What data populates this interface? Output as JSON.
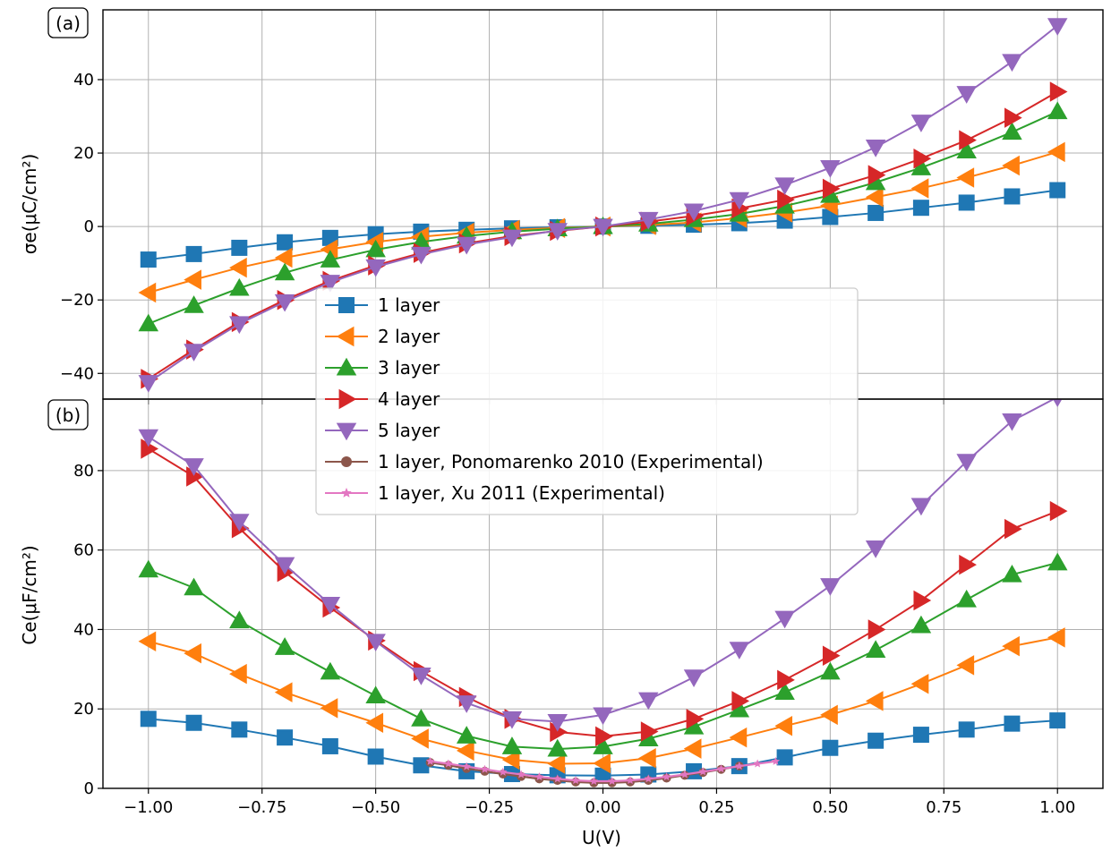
{
  "figure": {
    "panel_a_label": "(a)",
    "panel_b_label": "(b)",
    "ylabel_a": "σe(μC/cm²)",
    "ylabel_b": "Ce(μF/cm²)",
    "xlabel": "U(V)",
    "legend": [
      "1 layer",
      "2 layer",
      "3 layer",
      "4 layer",
      "5 layer",
      "1 layer, Ponomarenko 2010 (Experimental)",
      "1 layer, Xu 2011 (Experimental)"
    ],
    "colors": {
      "1 layer": "#1f77b4",
      "2 layer": "#ff7f0e",
      "3 layer": "#2ca02c",
      "4 layer": "#d62728",
      "5 layer": "#9467bd",
      "Ponomarenko": "#8c564b",
      "Xu": "#e377c2"
    },
    "markers": [
      "square",
      "triangle-left",
      "triangle-up",
      "triangle-right",
      "triangle-down",
      "circle",
      "star"
    ]
  },
  "chart_data": [
    {
      "type": "line",
      "panel": "(a)",
      "xlabel": "U(V)",
      "ylabel": "σe(μC/cm²)",
      "xlim": [
        -1.1,
        1.1
      ],
      "ylim": [
        -47,
        59
      ],
      "xticks": [
        "−1.00",
        "−0.75",
        "−0.50",
        "−0.25",
        "0.00",
        "0.25",
        "0.50",
        "0.75",
        "1.00"
      ],
      "yticks": [
        "−40",
        "−20",
        "0",
        "20",
        "40"
      ],
      "grid": true,
      "x": [
        -1.0,
        -0.9,
        -0.8,
        -0.7,
        -0.6,
        -0.5,
        -0.4,
        -0.3,
        -0.2,
        -0.1,
        0.0,
        0.1,
        0.2,
        0.3,
        0.4,
        0.5,
        0.6,
        0.7,
        0.8,
        0.9,
        1.0
      ],
      "series": [
        {
          "name": "1 layer",
          "values": [
            -9,
            -7.5,
            -5.8,
            -4.3,
            -3.1,
            -2.1,
            -1.4,
            -0.9,
            -0.5,
            -0.2,
            0,
            0.2,
            0.5,
            0.9,
            1.6,
            2.6,
            3.7,
            5.1,
            6.5,
            8.2,
            9.9
          ]
        },
        {
          "name": "2 layer",
          "values": [
            -18,
            -14.5,
            -11.2,
            -8.5,
            -6.2,
            -4.2,
            -2.8,
            -1.7,
            -0.9,
            -0.4,
            0,
            0.4,
            1.1,
            2.3,
            3.8,
            5.7,
            8,
            10.4,
            13.3,
            16.6,
            20.3
          ]
        },
        {
          "name": "3 layer",
          "values": [
            -26.5,
            -21.5,
            -16.8,
            -12.6,
            -9.1,
            -6.3,
            -4.2,
            -2.6,
            -1.4,
            -0.6,
            0,
            0.7,
            1.9,
            3.4,
            5.6,
            8.5,
            12,
            16,
            20.6,
            25.7,
            31.3
          ]
        },
        {
          "name": "4 layer",
          "values": [
            -41.5,
            -33.5,
            -26,
            -20,
            -14.8,
            -10.6,
            -7.2,
            -4.6,
            -2.6,
            -1.2,
            0,
            1.3,
            2.9,
            4.9,
            7.3,
            10.3,
            14,
            18.5,
            23.5,
            29.6,
            36.7
          ]
        },
        {
          "name": "5 layer",
          "values": [
            -42.5,
            -34,
            -26.5,
            -20.5,
            -15.2,
            -11,
            -7.6,
            -4.9,
            -2.9,
            -1.1,
            0,
            1.9,
            4.2,
            7.3,
            11.3,
            16,
            21.6,
            28.4,
            36.2,
            44.9,
            54.7
          ]
        }
      ]
    },
    {
      "type": "line",
      "panel": "(b)",
      "xlabel": "U(V)",
      "ylabel": "Ce(μF/cm²)",
      "xlim": [
        -1.1,
        1.1
      ],
      "ylim": [
        0,
        98
      ],
      "xticks": [
        "−1.00",
        "−0.75",
        "−0.50",
        "−0.25",
        "0.00",
        "0.25",
        "0.50",
        "0.75",
        "1.00"
      ],
      "yticks": [
        "0",
        "20",
        "40",
        "60",
        "80"
      ],
      "grid": true,
      "x": [
        -1.0,
        -0.9,
        -0.8,
        -0.7,
        -0.6,
        -0.5,
        -0.4,
        -0.3,
        -0.2,
        -0.1,
        0.0,
        0.1,
        0.2,
        0.3,
        0.4,
        0.5,
        0.6,
        0.7,
        0.8,
        0.9,
        1.0
      ],
      "series": [
        {
          "name": "1 layer",
          "values": [
            17.5,
            16.5,
            14.8,
            12.8,
            10.6,
            8,
            5.8,
            4.3,
            3.6,
            3.3,
            3.2,
            3.5,
            4.3,
            5.6,
            7.8,
            10.2,
            12,
            13.5,
            14.8,
            16.3,
            17.1
          ]
        },
        {
          "name": "2 layer",
          "values": [
            37,
            34,
            28.8,
            24.2,
            20.2,
            16.5,
            12.5,
            9.5,
            7.2,
            6.2,
            6.3,
            7.6,
            10,
            12.8,
            15.7,
            18.5,
            22,
            26.3,
            31,
            35.8,
            38
          ]
        },
        {
          "name": "3 layer",
          "values": [
            55,
            50.5,
            42.2,
            35.5,
            29.3,
            23.3,
            17.5,
            13.2,
            10.5,
            9.9,
            10.5,
            12.5,
            15.5,
            19.8,
            24.2,
            29.3,
            34.8,
            41,
            47.5,
            53.8,
            56.8
          ]
        },
        {
          "name": "4 layer",
          "values": [
            85.5,
            78.5,
            65.5,
            54.5,
            45.5,
            37.2,
            29.5,
            23,
            17.5,
            14.2,
            13.1,
            14.3,
            17.5,
            22,
            27.3,
            33.4,
            40,
            47.3,
            56.3,
            65.3,
            69.8
          ]
        },
        {
          "name": "5 layer",
          "values": [
            88.5,
            81.2,
            67.2,
            56.3,
            46.3,
            37,
            28.5,
            21.5,
            17.5,
            16.8,
            18.5,
            22.3,
            28,
            35,
            42.8,
            51,
            60.5,
            71.2,
            82.3,
            92.5,
            98.5
          ]
        },
        {
          "name": "1 layer, Ponomarenko 2010 (Experimental)",
          "x": [
            -0.38,
            -0.34,
            -0.3,
            -0.26,
            -0.22,
            -0.18,
            -0.14,
            -0.1,
            -0.06,
            -0.02,
            0.02,
            0.06,
            0.1,
            0.14,
            0.18,
            0.22,
            0.26,
            0.3
          ],
          "values": [
            6.5,
            5.8,
            5,
            4.3,
            3.6,
            3,
            2.4,
            2,
            1.6,
            1.4,
            1.4,
            1.6,
            2,
            2.6,
            3.3,
            4,
            4.8,
            5.6
          ]
        },
        {
          "name": "1 layer, Xu 2011 (Experimental)",
          "x": [
            -0.38,
            -0.34,
            -0.3,
            -0.26,
            -0.22,
            -0.18,
            -0.14,
            -0.1,
            -0.06,
            -0.02,
            0.02,
            0.06,
            0.1,
            0.14,
            0.18,
            0.22,
            0.26,
            0.3,
            0.34,
            0.38
          ],
          "values": [
            6.8,
            6.2,
            5.5,
            4.8,
            4.1,
            3.5,
            2.9,
            2.4,
            2,
            1.8,
            1.8,
            2,
            2.4,
            2.9,
            3.5,
            4.2,
            4.9,
            5.6,
            6.2,
            6.8
          ]
        }
      ]
    }
  ]
}
